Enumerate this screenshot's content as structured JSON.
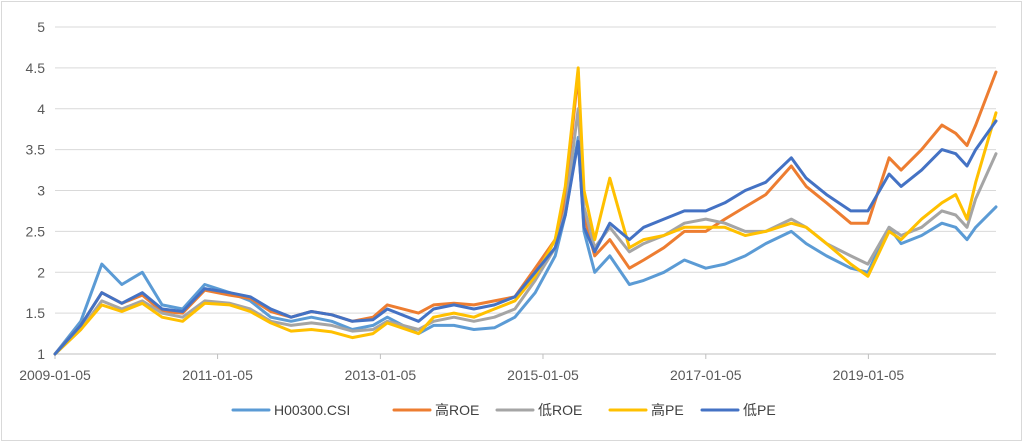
{
  "chart_data": {
    "type": "line",
    "title": "",
    "xlabel": "",
    "ylabel": "",
    "ylim": [
      1,
      5
    ],
    "yticks": [
      "1",
      "1.5",
      "2",
      "2.5",
      "3",
      "3.5",
      "4",
      "4.5",
      "5"
    ],
    "xlim": [
      "2009-01-05",
      "2020-07-31"
    ],
    "xticks": [
      "2009-01-05",
      "2011-01-05",
      "2013-01-05",
      "2015-01-05",
      "2017-01-05",
      "2019-01-05"
    ],
    "grid": "horizontal",
    "legend_position": "bottom",
    "x": [
      "2009-01-05",
      "2009-05-01",
      "2009-08-03",
      "2009-11-01",
      "2010-02-01",
      "2010-05-01",
      "2010-08-01",
      "2010-11-08",
      "2011-03-01",
      "2011-06-01",
      "2011-09-01",
      "2011-12-01",
      "2012-03-01",
      "2012-06-01",
      "2012-09-01",
      "2012-12-03",
      "2013-02-05",
      "2013-06-25",
      "2013-09-01",
      "2013-12-01",
      "2014-03-01",
      "2014-06-01",
      "2014-09-01",
      "2014-12-01",
      "2015-03-01",
      "2015-04-15",
      "2015-06-12",
      "2015-07-08",
      "2015-08-25",
      "2015-11-01",
      "2016-01-28",
      "2016-04-01",
      "2016-07-01",
      "2016-10-01",
      "2017-01-05",
      "2017-04-01",
      "2017-07-01",
      "2017-10-01",
      "2018-01-24",
      "2018-04-01",
      "2018-07-01",
      "2018-10-18",
      "2019-01-03",
      "2019-04-08",
      "2019-06-01",
      "2019-09-01",
      "2019-12-01",
      "2020-02-01",
      "2020-03-23",
      "2020-05-01",
      "2020-07-31"
    ],
    "series": [
      {
        "name": "H00300.CSI",
        "color": "#5b9bd5",
        "values": [
          1.0,
          1.4,
          2.1,
          1.85,
          2.0,
          1.6,
          1.55,
          1.85,
          1.75,
          1.65,
          1.45,
          1.4,
          1.45,
          1.4,
          1.3,
          1.35,
          1.45,
          1.25,
          1.35,
          1.35,
          1.3,
          1.32,
          1.45,
          1.75,
          2.2,
          2.7,
          3.65,
          2.5,
          2.0,
          2.2,
          1.85,
          1.9,
          2.0,
          2.15,
          2.05,
          2.1,
          2.2,
          2.35,
          2.5,
          2.35,
          2.2,
          2.05,
          2.0,
          2.55,
          2.35,
          2.45,
          2.6,
          2.55,
          2.4,
          2.55,
          2.8
        ]
      },
      {
        "name": "高ROE",
        "color": "#ed7d31",
        "values": [
          1.0,
          1.35,
          1.75,
          1.62,
          1.72,
          1.52,
          1.5,
          1.78,
          1.72,
          1.68,
          1.52,
          1.45,
          1.52,
          1.48,
          1.4,
          1.45,
          1.6,
          1.5,
          1.6,
          1.62,
          1.6,
          1.65,
          1.7,
          2.05,
          2.4,
          2.9,
          4.45,
          2.7,
          2.2,
          2.4,
          2.05,
          2.15,
          2.3,
          2.5,
          2.5,
          2.65,
          2.8,
          2.95,
          3.3,
          3.05,
          2.85,
          2.6,
          2.6,
          3.4,
          3.25,
          3.5,
          3.8,
          3.7,
          3.55,
          3.8,
          4.45
        ]
      },
      {
        "name": "低ROE",
        "color": "#a5a5a5",
        "values": [
          1.0,
          1.3,
          1.65,
          1.55,
          1.65,
          1.5,
          1.45,
          1.65,
          1.62,
          1.55,
          1.4,
          1.35,
          1.38,
          1.35,
          1.28,
          1.3,
          1.4,
          1.3,
          1.4,
          1.45,
          1.4,
          1.45,
          1.55,
          1.9,
          2.3,
          2.75,
          4.0,
          2.8,
          2.3,
          2.55,
          2.25,
          2.35,
          2.45,
          2.6,
          2.65,
          2.6,
          2.5,
          2.5,
          2.65,
          2.55,
          2.35,
          2.2,
          2.1,
          2.55,
          2.45,
          2.55,
          2.75,
          2.7,
          2.55,
          2.9,
          3.45
        ]
      },
      {
        "name": "高PE",
        "color": "#ffc000",
        "values": [
          1.0,
          1.3,
          1.6,
          1.52,
          1.62,
          1.45,
          1.4,
          1.62,
          1.6,
          1.52,
          1.38,
          1.28,
          1.3,
          1.27,
          1.2,
          1.25,
          1.38,
          1.25,
          1.45,
          1.5,
          1.45,
          1.55,
          1.65,
          1.95,
          2.4,
          3.05,
          4.5,
          3.0,
          2.4,
          3.15,
          2.3,
          2.4,
          2.45,
          2.55,
          2.55,
          2.55,
          2.45,
          2.5,
          2.6,
          2.55,
          2.35,
          2.1,
          1.95,
          2.5,
          2.4,
          2.65,
          2.85,
          2.95,
          2.65,
          3.1,
          3.95
        ]
      },
      {
        "name": "低PE",
        "color": "#4472c4",
        "values": [
          1.0,
          1.35,
          1.75,
          1.62,
          1.75,
          1.55,
          1.52,
          1.8,
          1.75,
          1.7,
          1.55,
          1.45,
          1.52,
          1.48,
          1.4,
          1.42,
          1.55,
          1.4,
          1.55,
          1.6,
          1.55,
          1.6,
          1.7,
          2.0,
          2.3,
          2.7,
          3.6,
          2.55,
          2.25,
          2.6,
          2.4,
          2.55,
          2.65,
          2.75,
          2.75,
          2.85,
          3.0,
          3.1,
          3.4,
          3.15,
          2.95,
          2.75,
          2.75,
          3.2,
          3.05,
          3.25,
          3.5,
          3.45,
          3.3,
          3.5,
          3.85
        ]
      }
    ]
  }
}
